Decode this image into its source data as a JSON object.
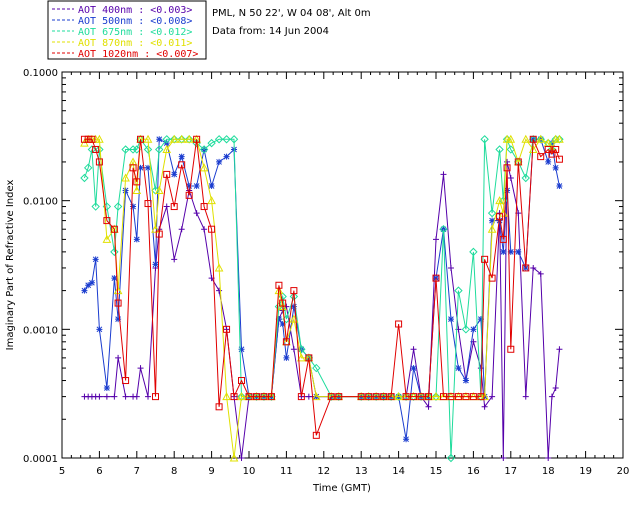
{
  "header": {
    "station": "PML, N 50 22', W 04 08', Alt 0m",
    "date": "Data from: 14 Jun 2004"
  },
  "chart_data": {
    "type": "line",
    "xlabel": "Time (GMT)",
    "ylabel": "Imaginary Part of Refractive Index",
    "xlim": [
      5,
      20
    ],
    "ylim": [
      0.0001,
      0.1
    ],
    "yscale": "log",
    "xticks": [
      5,
      6,
      7,
      8,
      9,
      10,
      11,
      12,
      13,
      14,
      15,
      16,
      17,
      18,
      19,
      20
    ],
    "yticks": [
      {
        "value": 0.0001,
        "label": "0.0001"
      },
      {
        "value": 0.001,
        "label": "0.0010"
      },
      {
        "value": 0.01,
        "label": "0.0100"
      },
      {
        "value": 0.1,
        "label": "0.1000"
      }
    ],
    "grid": false,
    "legend": "top-left",
    "series": [
      {
        "name": "AOT  400nm : <0.003>",
        "color": "#5500aa",
        "marker": "plus",
        "x": [
          5.6,
          5.7,
          5.8,
          5.9,
          6.0,
          6.2,
          6.4,
          6.5,
          6.7,
          6.9,
          7.0,
          7.1,
          7.3,
          7.5,
          7.6,
          7.8,
          8.0,
          8.2,
          8.4,
          8.6,
          8.8,
          9.0,
          9.2,
          9.4,
          9.6,
          9.8,
          10.0,
          10.2,
          10.4,
          10.6,
          10.8,
          10.9,
          11.0,
          11.2,
          11.4,
          11.6,
          11.8,
          12.2,
          12.4,
          13.0,
          13.2,
          13.4,
          13.6,
          13.8,
          14.0,
          14.2,
          14.4,
          14.6,
          14.8,
          15.0,
          15.2,
          15.4,
          15.6,
          15.8,
          16.0,
          16.2,
          16.3,
          16.5,
          16.7,
          16.8,
          16.9,
          17.0,
          17.2,
          17.4,
          17.6,
          17.8,
          18.0,
          18.1,
          18.2,
          18.3
        ],
        "y": [
          0.0003,
          0.0003,
          0.0003,
          0.0003,
          0.0003,
          0.0003,
          0.0003,
          0.0006,
          0.0003,
          0.0003,
          0.0003,
          0.0005,
          0.0003,
          0.003,
          0.006,
          0.009,
          0.0035,
          0.006,
          0.012,
          0.008,
          0.006,
          0.0025,
          0.002,
          0.001,
          0.0003,
          0.0001,
          0.0003,
          0.0003,
          0.0003,
          0.0003,
          0.0012,
          0.0014,
          0.0015,
          0.0007,
          0.0003,
          0.0003,
          0.0003,
          0.0003,
          0.0003,
          0.0003,
          0.0003,
          0.0003,
          0.0003,
          0.0003,
          0.0003,
          0.0003,
          0.0007,
          0.0003,
          0.00025,
          0.005,
          0.016,
          0.003,
          0.001,
          0.0004,
          0.0008,
          0.0005,
          0.00025,
          0.0003,
          0.008,
          0.0001,
          0.02,
          0.015,
          0.008,
          0.0003,
          0.003,
          0.0027,
          0.0001,
          0.0003,
          0.00035,
          0.0007
        ]
      },
      {
        "name": "AOT  500nm : <0.008>",
        "color": "#1a3ccf",
        "marker": "star",
        "x": [
          5.6,
          5.7,
          5.8,
          5.9,
          6.0,
          6.2,
          6.4,
          6.5,
          6.7,
          6.9,
          7.0,
          7.1,
          7.3,
          7.5,
          7.6,
          7.8,
          8.0,
          8.2,
          8.4,
          8.6,
          8.8,
          9.0,
          9.2,
          9.4,
          9.6,
          9.8,
          10.0,
          10.2,
          10.4,
          10.6,
          10.8,
          10.9,
          11.0,
          11.2,
          11.4,
          11.6,
          11.8,
          12.2,
          12.4,
          13.0,
          13.2,
          13.4,
          13.6,
          13.8,
          14.0,
          14.2,
          14.4,
          14.6,
          14.8,
          15.0,
          15.2,
          15.4,
          15.6,
          15.8,
          16.0,
          16.2,
          16.3,
          16.5,
          16.7,
          16.8,
          16.9,
          17.0,
          17.2,
          17.4,
          17.6,
          17.8,
          18.0,
          18.1,
          18.2,
          18.3
        ],
        "y": [
          0.002,
          0.0022,
          0.0023,
          0.0035,
          0.001,
          0.00035,
          0.0025,
          0.0012,
          0.012,
          0.009,
          0.005,
          0.018,
          0.018,
          0.0032,
          0.03,
          0.028,
          0.016,
          0.022,
          0.013,
          0.013,
          0.025,
          0.013,
          0.02,
          0.022,
          0.025,
          0.0007,
          0.0003,
          0.0003,
          0.0003,
          0.0003,
          0.0012,
          0.0011,
          0.0006,
          0.0015,
          0.0007,
          0.0006,
          0.0003,
          0.0003,
          0.0003,
          0.0003,
          0.0003,
          0.0003,
          0.0003,
          0.0003,
          0.0003,
          0.00014,
          0.0005,
          0.0003,
          0.0003,
          0.0025,
          0.006,
          0.0012,
          0.0005,
          0.0004,
          0.001,
          0.0012,
          0.0003,
          0.007,
          0.007,
          0.004,
          0.012,
          0.004,
          0.004,
          0.003,
          0.03,
          0.03,
          0.02,
          0.028,
          0.018,
          0.013
        ]
      },
      {
        "name": "AOT  675nm : <0.012>",
        "color": "#1fdc9c",
        "marker": "diamond",
        "x": [
          5.6,
          5.7,
          5.8,
          5.9,
          6.0,
          6.2,
          6.4,
          6.5,
          6.7,
          6.9,
          7.0,
          7.1,
          7.3,
          7.5,
          7.6,
          7.8,
          8.0,
          8.2,
          8.4,
          8.6,
          8.8,
          9.0,
          9.2,
          9.4,
          9.6,
          9.8,
          10.0,
          10.2,
          10.4,
          10.6,
          10.8,
          10.9,
          11.0,
          11.2,
          11.4,
          11.6,
          11.8,
          12.2,
          12.4,
          13.0,
          13.2,
          13.4,
          13.6,
          13.8,
          14.0,
          14.2,
          14.4,
          14.6,
          14.8,
          15.0,
          15.2,
          15.4,
          15.6,
          15.8,
          16.0,
          16.2,
          16.3,
          16.5,
          16.7,
          16.8,
          16.9,
          17.0,
          17.2,
          17.4,
          17.6,
          17.8,
          18.0,
          18.1,
          18.2,
          18.3
        ],
        "y": [
          0.015,
          0.018,
          0.025,
          0.009,
          0.025,
          0.009,
          0.004,
          0.009,
          0.025,
          0.025,
          0.025,
          0.03,
          0.025,
          0.012,
          0.025,
          0.03,
          0.03,
          0.03,
          0.03,
          0.028,
          0.025,
          0.028,
          0.03,
          0.03,
          0.03,
          0.0003,
          0.0003,
          0.0003,
          0.0003,
          0.0003,
          0.0015,
          0.0018,
          0.0012,
          0.0018,
          0.0007,
          0.0006,
          0.0005,
          0.0003,
          0.0003,
          0.0003,
          0.0003,
          0.0003,
          0.0003,
          0.0003,
          0.0003,
          0.0003,
          0.0003,
          0.0003,
          0.0003,
          0.0003,
          0.006,
          0.0001,
          0.002,
          0.001,
          0.004,
          0.0003,
          0.03,
          0.008,
          0.025,
          0.01,
          0.03,
          0.025,
          0.02,
          0.015,
          0.03,
          0.03,
          0.028,
          0.025,
          0.03,
          0.03
        ]
      },
      {
        "name": "AOT  870nm : <0.011>",
        "color": "#e0e000",
        "marker": "triangle",
        "x": [
          5.6,
          5.7,
          5.8,
          5.9,
          6.0,
          6.2,
          6.4,
          6.5,
          6.7,
          6.9,
          7.0,
          7.1,
          7.3,
          7.5,
          7.6,
          7.8,
          8.0,
          8.2,
          8.4,
          8.6,
          8.8,
          9.0,
          9.2,
          9.4,
          9.6,
          9.8,
          10.0,
          10.2,
          10.4,
          10.6,
          10.8,
          10.9,
          11.0,
          11.2,
          11.4,
          11.6,
          11.8,
          12.2,
          12.4,
          13.0,
          13.2,
          13.4,
          13.6,
          13.8,
          14.0,
          14.2,
          14.4,
          14.6,
          14.8,
          15.0,
          15.2,
          15.4,
          15.6,
          15.8,
          16.0,
          16.2,
          16.3,
          16.5,
          16.7,
          16.8,
          16.9,
          17.0,
          17.2,
          17.4,
          17.6,
          17.8,
          18.0,
          18.1,
          18.2,
          18.3
        ],
        "y": [
          0.028,
          0.03,
          0.03,
          0.03,
          0.03,
          0.005,
          0.006,
          0.002,
          0.015,
          0.02,
          0.012,
          0.03,
          0.03,
          0.006,
          0.012,
          0.025,
          0.03,
          0.03,
          0.03,
          0.03,
          0.018,
          0.01,
          0.003,
          0.0003,
          0.0001,
          0.0003,
          0.0003,
          0.0003,
          0.0003,
          0.0003,
          0.002,
          0.0015,
          0.0008,
          0.0012,
          0.0006,
          0.0006,
          0.0003,
          0.0003,
          0.0003,
          0.0003,
          0.0003,
          0.0003,
          0.0003,
          0.0003,
          0.0003,
          0.0003,
          0.0003,
          0.0003,
          0.0003,
          0.0003,
          0.0003,
          0.0003,
          0.0003,
          0.0003,
          0.0003,
          0.0003,
          0.0003,
          0.006,
          0.01,
          0.008,
          0.03,
          0.03,
          0.02,
          0.03,
          0.025,
          0.03,
          0.028,
          0.025,
          0.03,
          0.03
        ]
      },
      {
        "name": "AOT 1020nm : <0.007>",
        "color": "#e00000",
        "marker": "square",
        "x": [
          5.6,
          5.7,
          5.8,
          5.9,
          6.0,
          6.2,
          6.4,
          6.5,
          6.7,
          6.9,
          7.0,
          7.1,
          7.3,
          7.5,
          7.6,
          7.8,
          8.0,
          8.2,
          8.4,
          8.6,
          8.8,
          9.0,
          9.2,
          9.4,
          9.6,
          9.8,
          10.0,
          10.2,
          10.4,
          10.6,
          10.8,
          10.9,
          11.0,
          11.2,
          11.4,
          11.6,
          11.8,
          12.2,
          12.4,
          13.0,
          13.2,
          13.4,
          13.6,
          13.8,
          14.0,
          14.2,
          14.4,
          14.6,
          14.8,
          15.0,
          15.2,
          15.4,
          15.6,
          15.8,
          16.0,
          16.2,
          16.3,
          16.5,
          16.7,
          16.8,
          16.9,
          17.0,
          17.2,
          17.4,
          17.6,
          17.8,
          18.0,
          18.1,
          18.2,
          18.3
        ],
        "y": [
          0.03,
          0.03,
          0.03,
          0.025,
          0.02,
          0.007,
          0.006,
          0.0016,
          0.0004,
          0.018,
          0.014,
          0.03,
          0.0095,
          0.0003,
          0.0055,
          0.016,
          0.009,
          0.019,
          0.011,
          0.03,
          0.009,
          0.006,
          0.00025,
          0.001,
          0.0003,
          0.0004,
          0.0003,
          0.0003,
          0.0003,
          0.0003,
          0.0022,
          0.0016,
          0.0008,
          0.002,
          0.0003,
          0.0006,
          0.00015,
          0.0003,
          0.0003,
          0.0003,
          0.0003,
          0.0003,
          0.0003,
          0.0003,
          0.0011,
          0.0003,
          0.0003,
          0.0003,
          0.0003,
          0.0025,
          0.0003,
          0.0003,
          0.0003,
          0.0003,
          0.0003,
          0.0003,
          0.0035,
          0.0025,
          0.0075,
          0.005,
          0.018,
          0.0007,
          0.02,
          0.003,
          0.03,
          0.022,
          0.025,
          0.023,
          0.025,
          0.021
        ]
      }
    ]
  }
}
